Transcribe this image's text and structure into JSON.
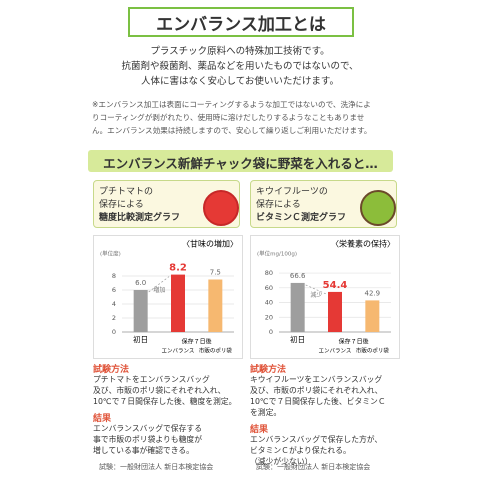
{
  "header": {
    "title": "エンバランス加工とは"
  },
  "intro": [
    "プラスチック原料への特殊加工技術です。",
    "抗菌剤や殺菌剤、薬品などを用いたものではないので、",
    "人体に害はなく安心してお使いいただけます。"
  ],
  "note": [
    "※エンバランス加工は表面にコーティングするような加工ではないので、洗浄によ",
    "りコーティングが剥がれたり、使用時に溶けだしたりするようなこともありませ",
    "ん。エンバランス効果は持続しますので、安心して繰り返しご利用いただけます。"
  ],
  "banner": "エンバランス新鮮チャック袋に野菜を入れると…",
  "panels": [
    {
      "label_lines": [
        "プチトマトの",
        "保存による",
        "糖度比較測定グラフ"
      ],
      "method_title": "試験方法",
      "method_lines": [
        "プチトマトをエンバランスバッグ",
        "及び、市販のポリ袋にそれぞれ入れ、",
        "10℃で７日間保存した後、糖度を測定。"
      ],
      "result_title": "結果",
      "result_lines": [
        "エンバランスバッグで保存する",
        "事で市販のポリ袋よりも糖度が",
        "増している事が確認できる。"
      ],
      "source": "試験：一般財団法人 新日本検定協会"
    },
    {
      "label_lines": [
        "キウイフルーツの",
        "保存による",
        "ビタミンＣ測定グラフ"
      ],
      "method_title": "試験方法",
      "method_lines": [
        "キウイフルーツをエンバランスバッグ",
        "及び、市販のポリ袋にそれぞれ入れ、",
        "10℃で７日間保存した後、ビタミンＣ",
        "を測定。"
      ],
      "result_title": "結果",
      "result_lines": [
        "エンバランスバッグで保存した方が、",
        "ビタミンＣがより保たれる。",
        "（減少が少ない）"
      ],
      "source": "試験：一般財団法人 新日本検定協会"
    }
  ],
  "chart_data": [
    {
      "type": "bar",
      "subtitle": "〈甘味の増加〉",
      "y_label": "(単位度)",
      "categories": [
        "初日",
        "エンバランス",
        "市販のポリ袋"
      ],
      "group_label": "保存７日後",
      "annotation": "増加",
      "values": [
        6.0,
        8.2,
        7.5
      ],
      "value_labels": [
        "6.0",
        "8.2",
        "7.5"
      ],
      "colors": [
        "#9e9e9e",
        "#e53935",
        "#f6b870"
      ],
      "ylim": [
        0,
        10
      ],
      "yticks": [
        0,
        2,
        4,
        6,
        8
      ],
      "grid": true
    },
    {
      "type": "bar",
      "subtitle": "〈栄養素の保持〉",
      "y_label": "(単位mg/100g)",
      "categories": [
        "初日",
        "エンバランス",
        "市販のポリ袋"
      ],
      "group_label": "保存７日後",
      "annotation": "減少",
      "values": [
        66.6,
        54.4,
        42.9
      ],
      "value_labels": [
        "66.6",
        "54.4",
        "42.9"
      ],
      "colors": [
        "#9e9e9e",
        "#e53935",
        "#f6b870"
      ],
      "ylim": [
        0,
        95
      ],
      "yticks": [
        0,
        20,
        40,
        60,
        80
      ],
      "grid": true
    }
  ]
}
